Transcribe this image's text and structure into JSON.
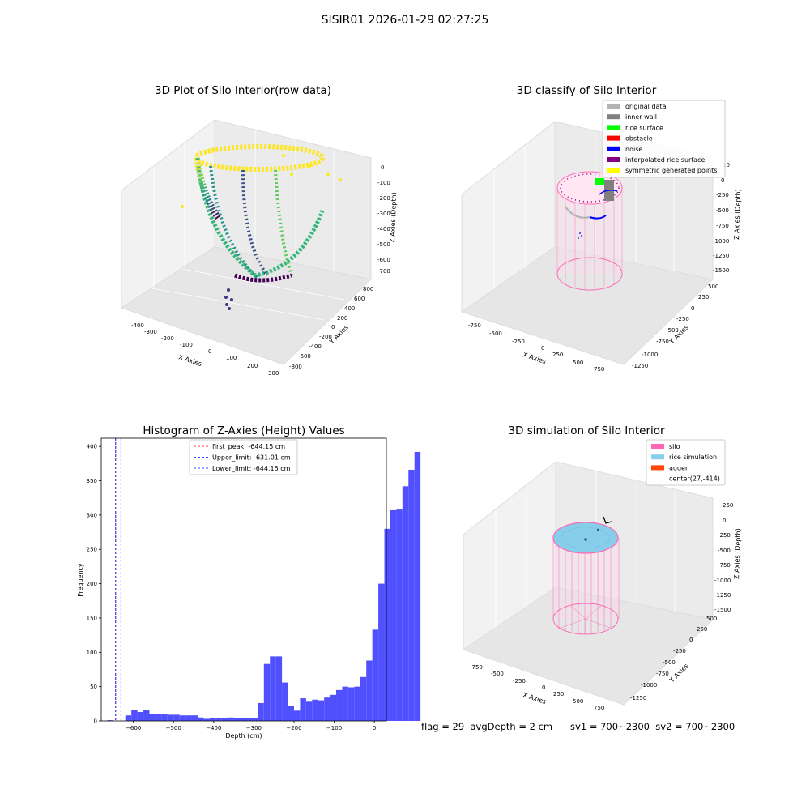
{
  "suptitle": "SISIR01 2026-01-29 02:27:25",
  "status": {
    "flag": "flag = 29",
    "avg_depth": "avgDepth = 2 cm",
    "sv1": "sv1 = 700~2300",
    "sv2": "sv2 = 700~2300"
  },
  "colors": {
    "histogram_bar": "#5050ff",
    "first_peak_line": "#ff0000",
    "limit_line": "#0000ff",
    "silo": "#ff69b4",
    "rice_simulation": "#87ceeb",
    "auger": "#ff4500",
    "rice_surface": "#00ff00",
    "obstacle": "#ff0000",
    "noise": "#0000ff",
    "interpolated": "#800080",
    "symmetric": "#ffff00",
    "original": "#b3b3b3",
    "inner_wall": "#808080"
  },
  "chart_data": [
    {
      "type": "scatter3d",
      "title": "3D Plot of Silo Interior(row data)",
      "xlabel": "X Axies",
      "ylabel": "Y Axies",
      "zlabel": "Z Axies (Depth)",
      "xticks": [
        "-400",
        "-300",
        "-200",
        "-100",
        "0",
        "100",
        "200",
        "300"
      ],
      "yticks": [
        "-800",
        "-600",
        "-400",
        "-200",
        "0",
        "200",
        "400",
        "600",
        "800"
      ],
      "zticks": [
        "0",
        "-100",
        "-200",
        "-300",
        "-400",
        "-500",
        "-600",
        "-700"
      ],
      "colormap": "viridis"
    },
    {
      "type": "scatter3d",
      "title": "3D classify of Silo Interior",
      "xlabel": "X Axies",
      "ylabel": "Y Axies",
      "zlabel": "Z Axies (Depth)",
      "xticks": [
        "-750",
        "-500",
        "-250",
        "0",
        "250",
        "500",
        "750"
      ],
      "yticks": [
        "-1250",
        "-1000",
        "-750",
        "-500",
        "-250",
        "0",
        "250",
        "500"
      ],
      "zticks": [
        "0",
        "-250",
        "-500",
        "-750",
        "-1000",
        "-1250",
        "-1500"
      ],
      "ztick_top": "10",
      "legend": [
        {
          "label": "original data",
          "color": "#b3b3b3"
        },
        {
          "label": "inner wall",
          "color": "#808080"
        },
        {
          "label": "rice surface",
          "color": "#00ff00"
        },
        {
          "label": "obstacle",
          "color": "#ff0000"
        },
        {
          "label": "noise",
          "color": "#0000ff"
        },
        {
          "label": "interpolated rice surface",
          "color": "#800080"
        },
        {
          "label": "symmetric generated points",
          "color": "#ffff00"
        }
      ],
      "legend_position": "top-right"
    },
    {
      "type": "bar",
      "title": "Histogram of Z-Axies (Height) Values",
      "xlabel": "Depth (cm)",
      "ylabel": "Frequency",
      "xlim": [
        -680,
        30
      ],
      "ylim": [
        0,
        412
      ],
      "xticks": [
        -600,
        -500,
        -400,
        -300,
        -200,
        -100,
        0
      ],
      "yticks": [
        0,
        50,
        100,
        150,
        200,
        250,
        300,
        350,
        400
      ],
      "bin_start": -680,
      "bin_width": 15,
      "values": [
        0,
        1,
        0,
        0,
        8,
        16,
        13,
        16,
        10,
        10,
        10,
        9,
        9,
        8,
        8,
        8,
        5,
        3,
        4,
        4,
        4,
        5,
        4,
        4,
        4,
        4,
        26,
        83,
        94,
        94,
        56,
        22,
        15,
        33,
        28,
        31,
        30,
        34,
        38,
        45,
        50,
        49,
        50,
        64,
        88,
        133,
        200,
        280,
        307,
        308,
        342,
        366,
        392
      ],
      "grid": false,
      "vlines": [
        {
          "label": "first_peak: -644.15 cm",
          "x": -644.15,
          "color": "#ff0000",
          "style": "dashed"
        },
        {
          "label": "Upper_limit: -631.01 cm",
          "x": -631.01,
          "color": "#0000ff",
          "style": "dashed"
        },
        {
          "label": "Lower_limit: -644.15 cm",
          "x": -644.15,
          "color": "#0000ff",
          "style": "dashed"
        }
      ],
      "legend_position": "top-center"
    },
    {
      "type": "surface3d",
      "title": "3D simulation of Silo Interior",
      "xlabel": "X Axies",
      "ylabel": "Y Axies",
      "zlabel": "Z Axies (Depth)",
      "xticks": [
        "-750",
        "-500",
        "-250",
        "0",
        "250",
        "500",
        "750"
      ],
      "yticks": [
        "-1250",
        "-1000",
        "-750",
        "-500",
        "-250",
        "0",
        "250",
        "500"
      ],
      "zticks": [
        "250",
        "0",
        "-250",
        "-500",
        "-750",
        "-1000",
        "-1250",
        "-1500"
      ],
      "legend": [
        {
          "label": "silo",
          "color": "#ff69b4"
        },
        {
          "label": "rice simulation",
          "color": "#87ceeb"
        },
        {
          "label": "auger",
          "color": "#ff4500"
        },
        {
          "label": "center(27,-414)",
          "color": ""
        }
      ],
      "legend_position": "top-right"
    }
  ]
}
